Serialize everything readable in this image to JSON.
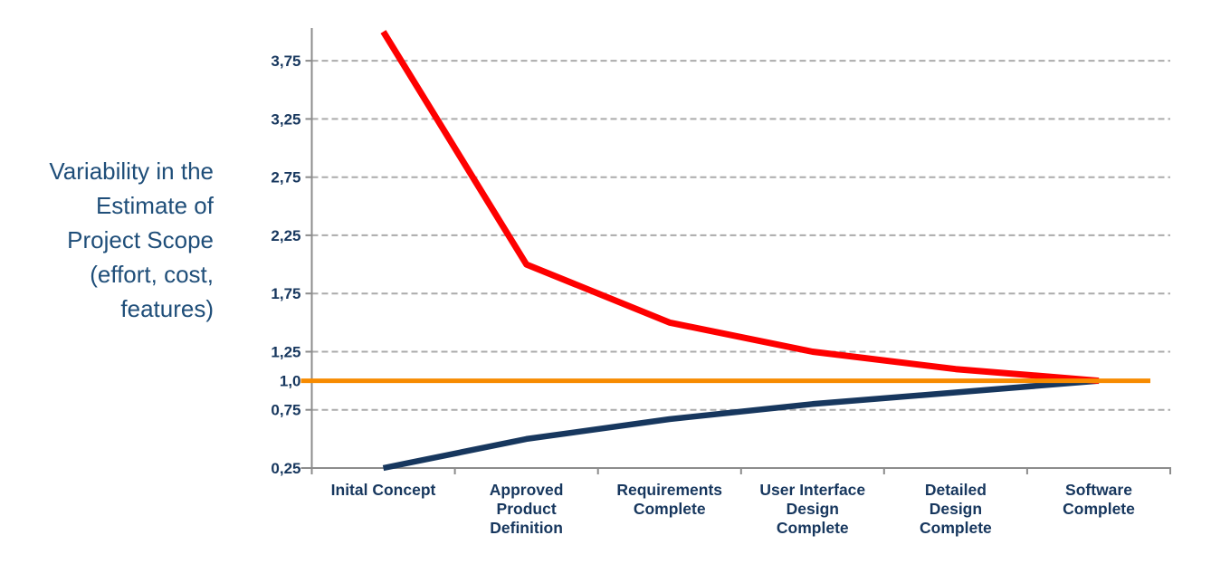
{
  "figure": {
    "kind": "cone-of-uncertainty-line-chart",
    "background": "#FFFFFF"
  },
  "y_axis_title": "Variability in the\nEstimate of\nProject Scope\n(effort, cost,\nfeatures)",
  "chart_data": {
    "type": "line",
    "title": "",
    "legend": "none",
    "grid": "horizontal dashed",
    "ylim": [
      0.25,
      4.0
    ],
    "categories": [
      "Inital Concept",
      "Approved Product Definition",
      "Requirements Complete",
      "User Interface Design Complete",
      "Detailed Design Complete",
      "Software Complete"
    ],
    "category_label_lines": [
      [
        "Inital Concept"
      ],
      [
        "Approved",
        "Product",
        "Definition"
      ],
      [
        "Requirements",
        "Complete"
      ],
      [
        "User Interface",
        "Design",
        "Complete"
      ],
      [
        "Detailed",
        "Design",
        "Complete"
      ],
      [
        "Software",
        "Complete"
      ]
    ],
    "series": [
      {
        "name": "upper-estimate-bound",
        "color": "#FE0000",
        "width": 7,
        "values": [
          4.0,
          2.0,
          1.5,
          1.25,
          1.1,
          1.0
        ]
      },
      {
        "name": "lower-estimate-bound",
        "color": "#17375E",
        "width": 6.5,
        "values": [
          0.25,
          0.5,
          0.67,
          0.8,
          0.9,
          1.0
        ]
      },
      {
        "name": "exact-estimate-reference",
        "color": "#F78B00",
        "width": 5,
        "values": [
          1.0,
          1.0,
          1.0,
          1.0,
          1.0,
          1.0
        ],
        "flat_reference": true
      }
    ],
    "y_ticks": [
      {
        "value": 3.75,
        "label": "3,75"
      },
      {
        "value": 3.25,
        "label": "3,25"
      },
      {
        "value": 2.75,
        "label": "2,75"
      },
      {
        "value": 2.25,
        "label": "2,25"
      },
      {
        "value": 1.75,
        "label": "1,75"
      },
      {
        "value": 1.25,
        "label": "1,25"
      },
      {
        "value": 1.0,
        "label": "1,0"
      },
      {
        "value": 0.75,
        "label": "0,75"
      },
      {
        "value": 0.25,
        "label": "0,25"
      }
    ],
    "gridline_values": [
      0.75,
      1.25,
      1.75,
      2.25,
      2.75,
      3.25,
      3.75
    ],
    "colors": {
      "gridline": "#ABABAB",
      "axis": "#8C8C8C",
      "tick_label": "#17375E",
      "category_label": "#17375E",
      "axis_title": "#1F4E79"
    }
  }
}
